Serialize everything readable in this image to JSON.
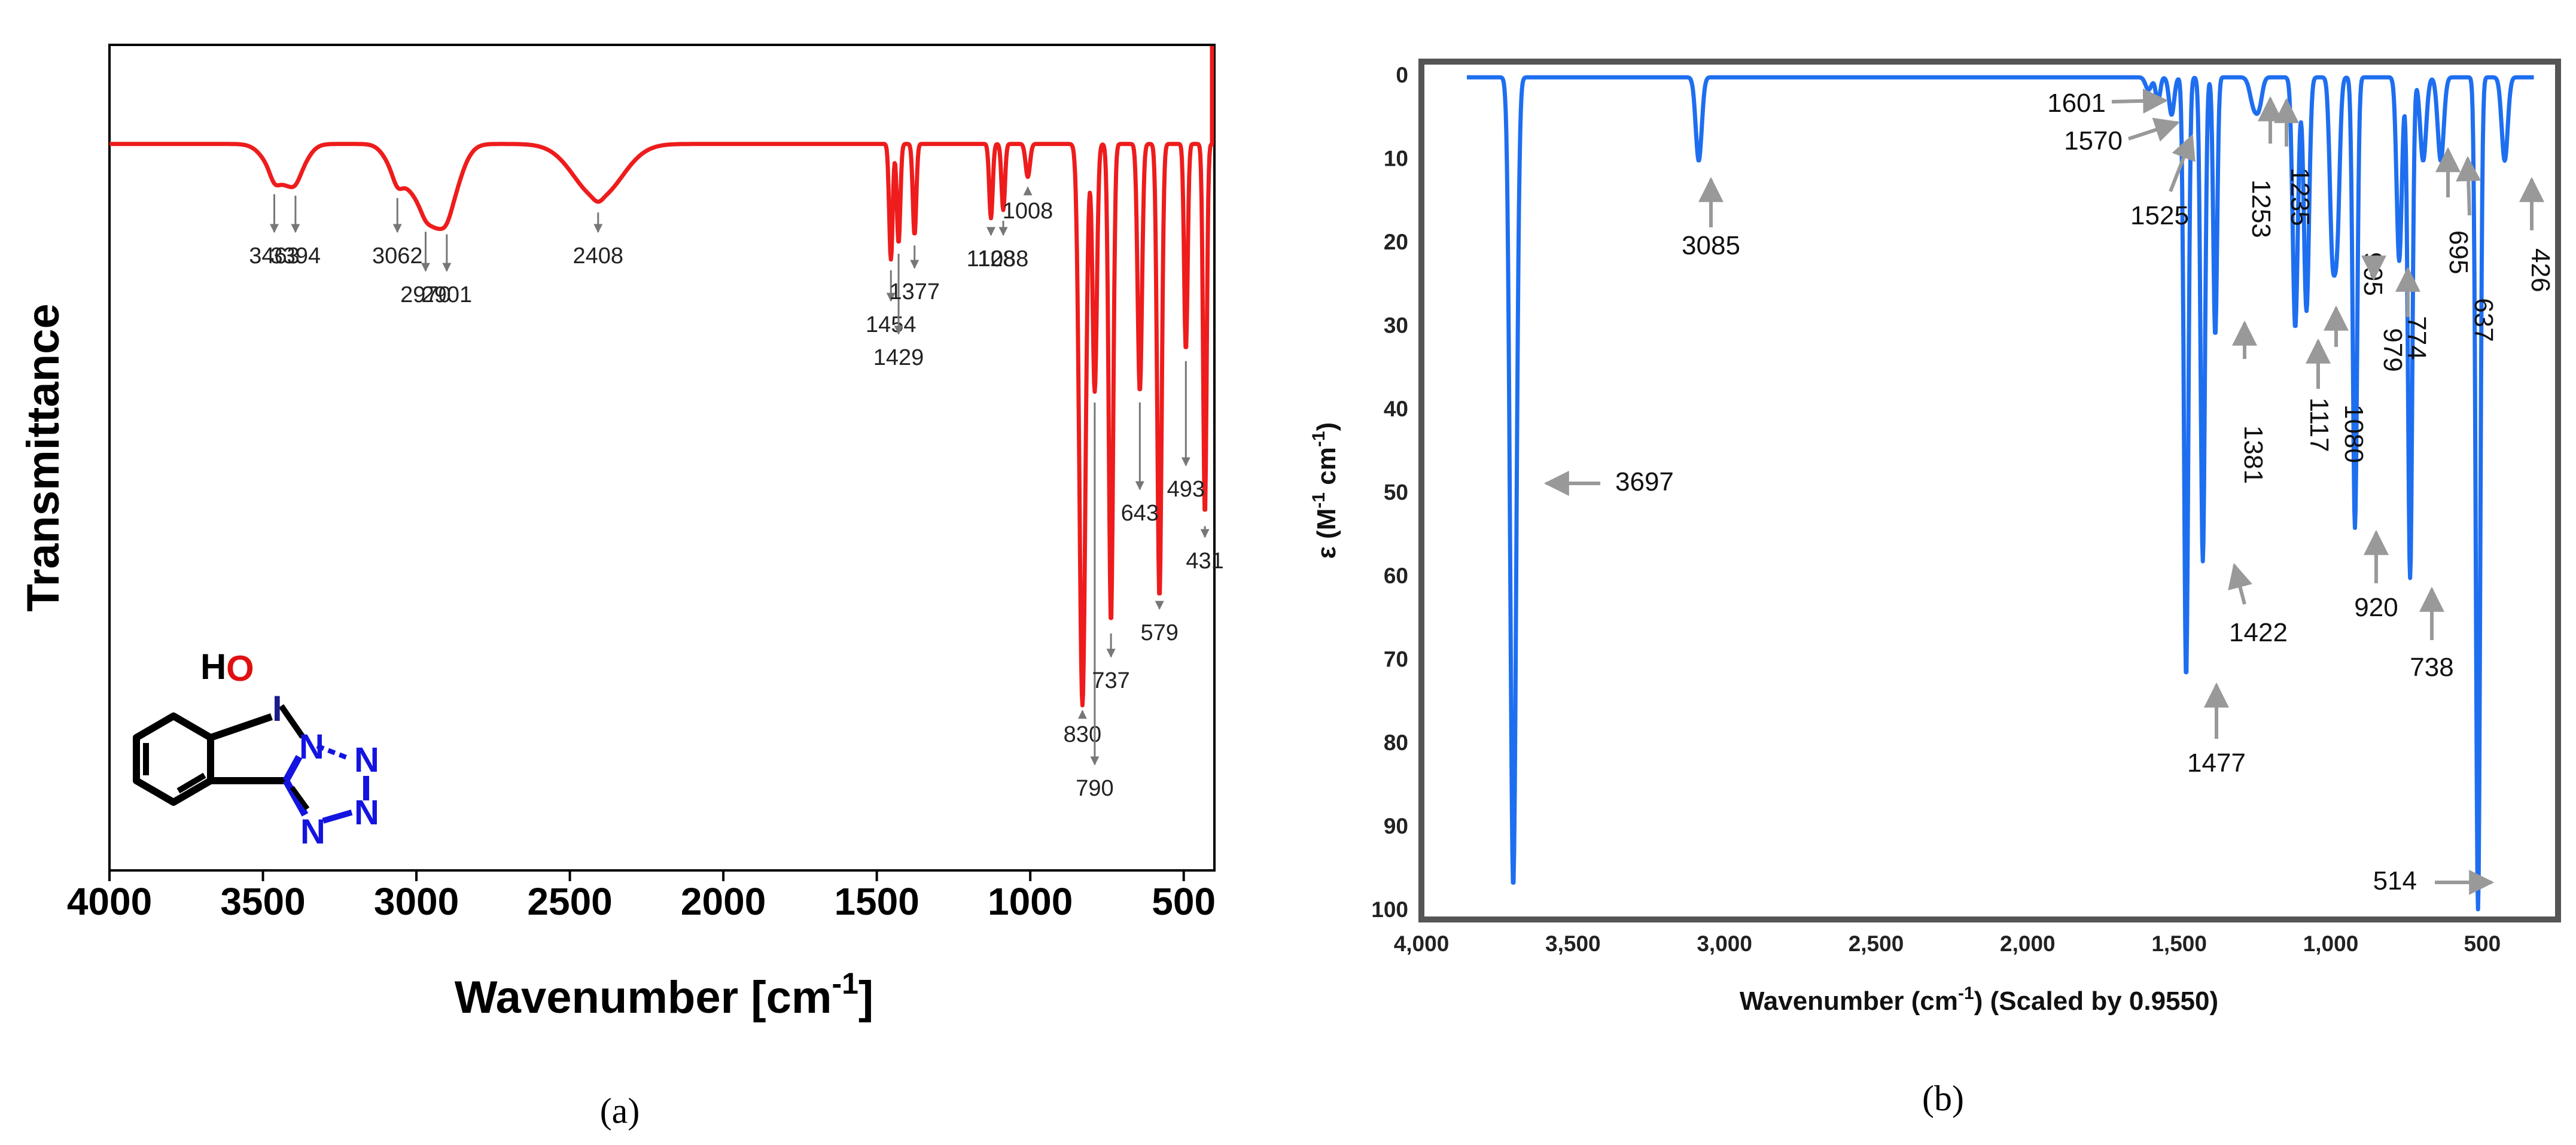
{
  "chart_data": [
    {
      "type": "line",
      "panel": "(a)",
      "caption": "(a)",
      "title": "",
      "xlabel_main": "Wavenumber [cm",
      "xlabel_sup": "-1",
      "xlabel_end": "]",
      "ylabel": "Transmittance",
      "xlim": [
        4000,
        400
      ],
      "xticks": [
        "4000",
        "3500",
        "3000",
        "2500",
        "2000",
        "1500",
        "1000",
        "500"
      ],
      "xtick_values": [
        4000,
        3500,
        3000,
        2500,
        2000,
        1500,
        1000,
        500
      ],
      "series_color": "#ee1c1c",
      "baseline": 0.88,
      "broad_bands": [
        {
          "x": 3450,
          "depth": 0.035,
          "width": 60
        },
        {
          "x": 3394,
          "depth": 0.03,
          "width": 50
        },
        {
          "x": 3062,
          "depth": 0.03,
          "width": 50
        },
        {
          "x": 2970,
          "depth": 0.07,
          "width": 70
        },
        {
          "x": 2901,
          "depth": 0.065,
          "width": 60
        },
        {
          "x": 2408,
          "depth": 0.065,
          "width": 110
        }
      ],
      "peaks": [
        {
          "x": 3463,
          "label": "3463",
          "depth": 0.01,
          "width": 20
        },
        {
          "x": 3394,
          "label": "3394",
          "depth": 0.005,
          "width": 20
        },
        {
          "x": 3062,
          "label": "3062",
          "depth": 0.01,
          "width": 20
        },
        {
          "x": 2970,
          "label": "2970",
          "depth": 0.005,
          "width": 20
        },
        {
          "x": 2901,
          "label": "2901",
          "depth": 0.005,
          "width": 20
        },
        {
          "x": 2408,
          "label": "2408",
          "depth": 0.005,
          "width": 20
        },
        {
          "x": 1454,
          "label": "1454",
          "depth": 0.14,
          "width": 8
        },
        {
          "x": 1429,
          "label": "1429",
          "depth": 0.12,
          "width": 8
        },
        {
          "x": 1377,
          "label": "1377",
          "depth": 0.11,
          "width": 8
        },
        {
          "x": 1128,
          "label": "1128",
          "depth": 0.09,
          "width": 8
        },
        {
          "x": 1088,
          "label": "1088",
          "depth": 0.08,
          "width": 8
        },
        {
          "x": 1008,
          "label": "1008",
          "depth": 0.04,
          "width": 10
        },
        {
          "x": 830,
          "label": "830",
          "depth": 0.68,
          "width": 14
        },
        {
          "x": 790,
          "label": "790",
          "depth": 0.3,
          "width": 10
        },
        {
          "x": 737,
          "label": "737",
          "depth": 0.58,
          "width": 10
        },
        {
          "x": 643,
          "label": "643",
          "depth": 0.3,
          "width": 10
        },
        {
          "x": 579,
          "label": "579",
          "depth": 0.55,
          "width": 10
        },
        {
          "x": 493,
          "label": "493",
          "depth": 0.25,
          "width": 8
        },
        {
          "x": 431,
          "label": "431",
          "depth": 0.45,
          "width": 8
        }
      ],
      "molecule_labels": {
        "h": "H",
        "o": "O",
        "i": "I",
        "n1": "N",
        "n2": "N",
        "n3": "N",
        "n4": "N"
      }
    },
    {
      "type": "line",
      "panel": "(b)",
      "caption": "(b)",
      "title": "",
      "xlabel_main": "Wavenumber (cm",
      "xlabel_sup": "-1",
      "xlabel_end": ") (Scaled by 0.9550)",
      "ylabel_main": "ε (M",
      "ylabel_sup1": "-1",
      "ylabel_mid": " cm",
      "ylabel_sup2": "-1",
      "ylabel_end": ")",
      "xlim": [
        4000,
        250
      ],
      "ylim": [
        0,
        100
      ],
      "xticks": [
        "4,000",
        "3,500",
        "3,000",
        "2,500",
        "2,000",
        "1,500",
        "1,000",
        "500"
      ],
      "xtick_values": [
        4000,
        3500,
        3000,
        2500,
        2000,
        1500,
        1000,
        500
      ],
      "yticks": [
        "0",
        "10",
        "20",
        "30",
        "40",
        "50",
        "60",
        "70",
        "80",
        "90",
        "100"
      ],
      "ytick_values": [
        0,
        10,
        20,
        30,
        40,
        50,
        60,
        70,
        80,
        90,
        100
      ],
      "series_color": "#1e6ef0",
      "peaks": [
        {
          "x": 3697,
          "label": "3697",
          "value": 97,
          "width": 14
        },
        {
          "x": 3085,
          "label": "3085",
          "value": 10,
          "width": 14
        },
        {
          "x": 1601,
          "label": "1601",
          "value": 1.5,
          "width": 14
        },
        {
          "x": 1570,
          "label": "1570",
          "value": 3,
          "width": 10
        },
        {
          "x": 1525,
          "label": "1525",
          "value": 4.5,
          "width": 12
        },
        {
          "x": 1477,
          "label": "1477",
          "value": 72,
          "width": 10
        },
        {
          "x": 1422,
          "label": "1422",
          "value": 58,
          "width": 10
        },
        {
          "x": 1381,
          "label": "1381",
          "value": 31,
          "width": 9
        },
        {
          "x": 1253,
          "label": "1253",
          "value": 3.5,
          "width": 18
        },
        {
          "x": 1235,
          "label": "1235",
          "value": 2.5,
          "width": 14
        },
        {
          "x": 1117,
          "label": "1117",
          "value": 30,
          "width": 12
        },
        {
          "x": 1080,
          "label": "1080",
          "value": 28,
          "width": 12
        },
        {
          "x": 995,
          "label": "995",
          "value": 19,
          "width": 12
        },
        {
          "x": 979,
          "label": "979",
          "value": 18,
          "width": 12
        },
        {
          "x": 920,
          "label": "920",
          "value": 54,
          "width": 10
        },
        {
          "x": 774,
          "label": "774",
          "value": 22,
          "width": 12
        },
        {
          "x": 738,
          "label": "738",
          "value": 60,
          "width": 10
        },
        {
          "x": 695,
          "label": "695",
          "value": 10,
          "width": 14
        },
        {
          "x": 637,
          "label": "637",
          "value": 10,
          "width": 14
        },
        {
          "x": 514,
          "label": "514",
          "value": 100,
          "width": 10
        },
        {
          "x": 426,
          "label": "426",
          "value": 10,
          "width": 14
        }
      ]
    }
  ]
}
